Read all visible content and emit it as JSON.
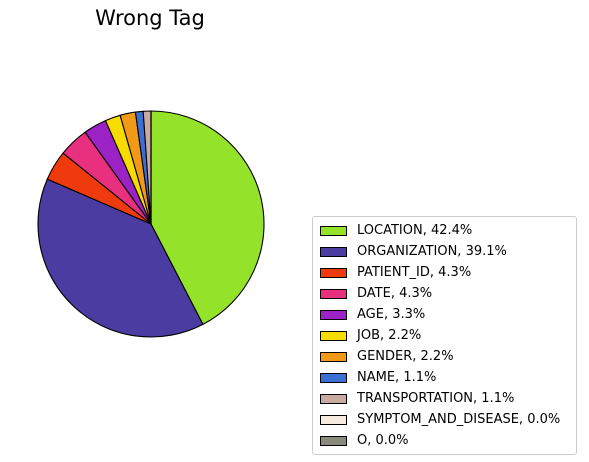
{
  "chart_data": {
    "type": "pie",
    "title": "Wrong Tag",
    "slices": [
      {
        "label": "LOCATION",
        "value": 42.4,
        "legend": "LOCATION, 42.4%",
        "color": "#94e22a"
      },
      {
        "label": "ORGANIZATION",
        "value": 39.1,
        "legend": "ORGANIZATION, 39.1%",
        "color": "#4a3ca0"
      },
      {
        "label": "PATIENT_ID",
        "value": 4.3,
        "legend": "PATIENT_ID, 4.3%",
        "color": "#ee3a0c"
      },
      {
        "label": "DATE",
        "value": 4.3,
        "legend": "DATE, 4.3%",
        "color": "#e8307f"
      },
      {
        "label": "AGE",
        "value": 3.3,
        "legend": "AGE, 3.3%",
        "color": "#9b22c4"
      },
      {
        "label": "JOB",
        "value": 2.2,
        "legend": "JOB, 2.2%",
        "color": "#f7dc00"
      },
      {
        "label": "GENDER",
        "value": 2.2,
        "legend": "GENDER, 2.2%",
        "color": "#f19a17"
      },
      {
        "label": "NAME",
        "value": 1.1,
        "legend": "NAME, 1.1%",
        "color": "#3c6fd2"
      },
      {
        "label": "TRANSPORTATION",
        "value": 1.1,
        "legend": "TRANSPORTATION, 1.1%",
        "color": "#c9aaa0"
      },
      {
        "label": "SYMPTOM_AND_DISEASE",
        "value": 0.0,
        "legend": "SYMPTOM_AND_DISEASE, 0.0%",
        "color": "#f7ebe0"
      },
      {
        "label": "O",
        "value": 0.0,
        "legend": "O, 0.0%",
        "color": "#8a8a7c"
      }
    ],
    "start_angle_deg": 90,
    "direction": "clockwise",
    "legend_position": "bottom-right"
  }
}
